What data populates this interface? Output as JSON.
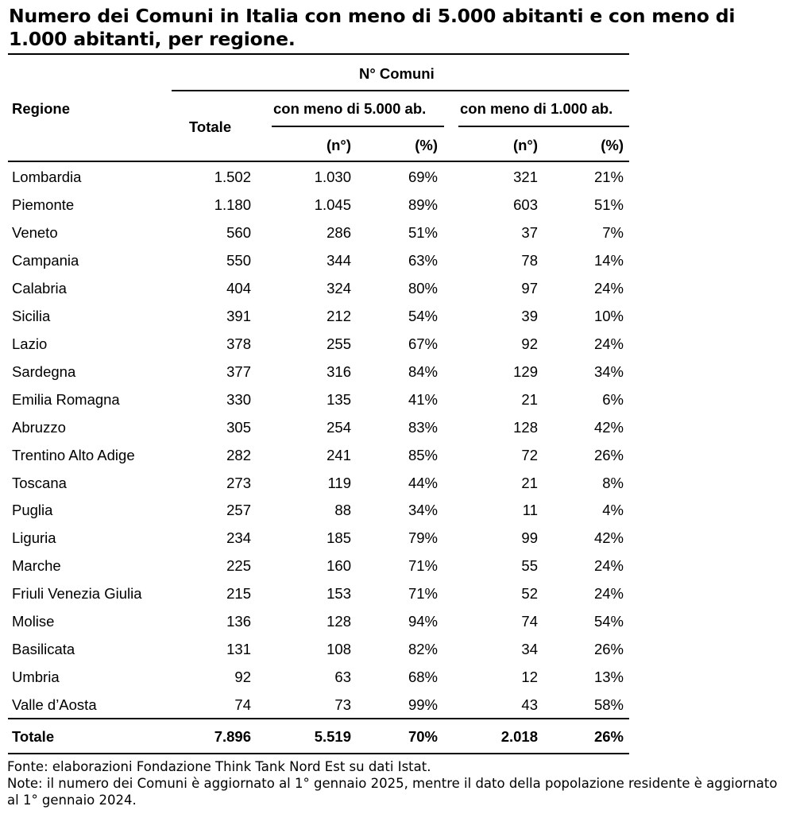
{
  "title": "Numero dei Comuni in Italia con meno di 5.000 abitanti e con meno di 1.000 abitanti, per regione.",
  "header": {
    "regione": "Regione",
    "group": "N° Comuni",
    "totale": "Totale",
    "sub1": "con meno di 5.000 ab.",
    "sub2": "con meno di 1.000 ab.",
    "n": "(n°)",
    "pct": "(%)"
  },
  "rows": [
    {
      "regione": "Lombardia",
      "totale": "1.502",
      "n5": "1.030",
      "p5": "69%",
      "n1": "321",
      "p1": "21%"
    },
    {
      "regione": "Piemonte",
      "totale": "1.180",
      "n5": "1.045",
      "p5": "89%",
      "n1": "603",
      "p1": "51%"
    },
    {
      "regione": "Veneto",
      "totale": "560",
      "n5": "286",
      "p5": "51%",
      "n1": "37",
      "p1": "7%"
    },
    {
      "regione": "Campania",
      "totale": "550",
      "n5": "344",
      "p5": "63%",
      "n1": "78",
      "p1": "14%"
    },
    {
      "regione": "Calabria",
      "totale": "404",
      "n5": "324",
      "p5": "80%",
      "n1": "97",
      "p1": "24%"
    },
    {
      "regione": "Sicilia",
      "totale": "391",
      "n5": "212",
      "p5": "54%",
      "n1": "39",
      "p1": "10%"
    },
    {
      "regione": "Lazio",
      "totale": "378",
      "n5": "255",
      "p5": "67%",
      "n1": "92",
      "p1": "24%"
    },
    {
      "regione": "Sardegna",
      "totale": "377",
      "n5": "316",
      "p5": "84%",
      "n1": "129",
      "p1": "34%"
    },
    {
      "regione": "Emilia Romagna",
      "totale": "330",
      "n5": "135",
      "p5": "41%",
      "n1": "21",
      "p1": "6%"
    },
    {
      "regione": "Abruzzo",
      "totale": "305",
      "n5": "254",
      "p5": "83%",
      "n1": "128",
      "p1": "42%"
    },
    {
      "regione": "Trentino Alto Adige",
      "totale": "282",
      "n5": "241",
      "p5": "85%",
      "n1": "72",
      "p1": "26%"
    },
    {
      "regione": "Toscana",
      "totale": "273",
      "n5": "119",
      "p5": "44%",
      "n1": "21",
      "p1": "8%"
    },
    {
      "regione": "Puglia",
      "totale": "257",
      "n5": "88",
      "p5": "34%",
      "n1": "11",
      "p1": "4%"
    },
    {
      "regione": "Liguria",
      "totale": "234",
      "n5": "185",
      "p5": "79%",
      "n1": "99",
      "p1": "42%"
    },
    {
      "regione": "Marche",
      "totale": "225",
      "n5": "160",
      "p5": "71%",
      "n1": "55",
      "p1": "24%"
    },
    {
      "regione": "Friuli Venezia Giulia",
      "totale": "215",
      "n5": "153",
      "p5": "71%",
      "n1": "52",
      "p1": "24%"
    },
    {
      "regione": "Molise",
      "totale": "136",
      "n5": "128",
      "p5": "94%",
      "n1": "74",
      "p1": "54%"
    },
    {
      "regione": "Basilicata",
      "totale": "131",
      "n5": "108",
      "p5": "82%",
      "n1": "34",
      "p1": "26%"
    },
    {
      "regione": "Umbria",
      "totale": "92",
      "n5": "63",
      "p5": "68%",
      "n1": "12",
      "p1": "13%"
    },
    {
      "regione": "Valle d’Aosta",
      "totale": "74",
      "n5": "73",
      "p5": "99%",
      "n1": "43",
      "p1": "58%"
    }
  ],
  "total": {
    "regione": "Totale",
    "totale": "7.896",
    "n5": "5.519",
    "p5": "70%",
    "n1": "2.018",
    "p1": "26%"
  },
  "notes": {
    "fonte": "Fonte: elaborazioni Fondazione Think Tank Nord Est su dati Istat.",
    "note": "Note: il numero dei Comuni è aggiornato al 1° gennaio 2025, mentre il dato della popolazione residente è aggiornato al 1° gennaio 2024."
  }
}
